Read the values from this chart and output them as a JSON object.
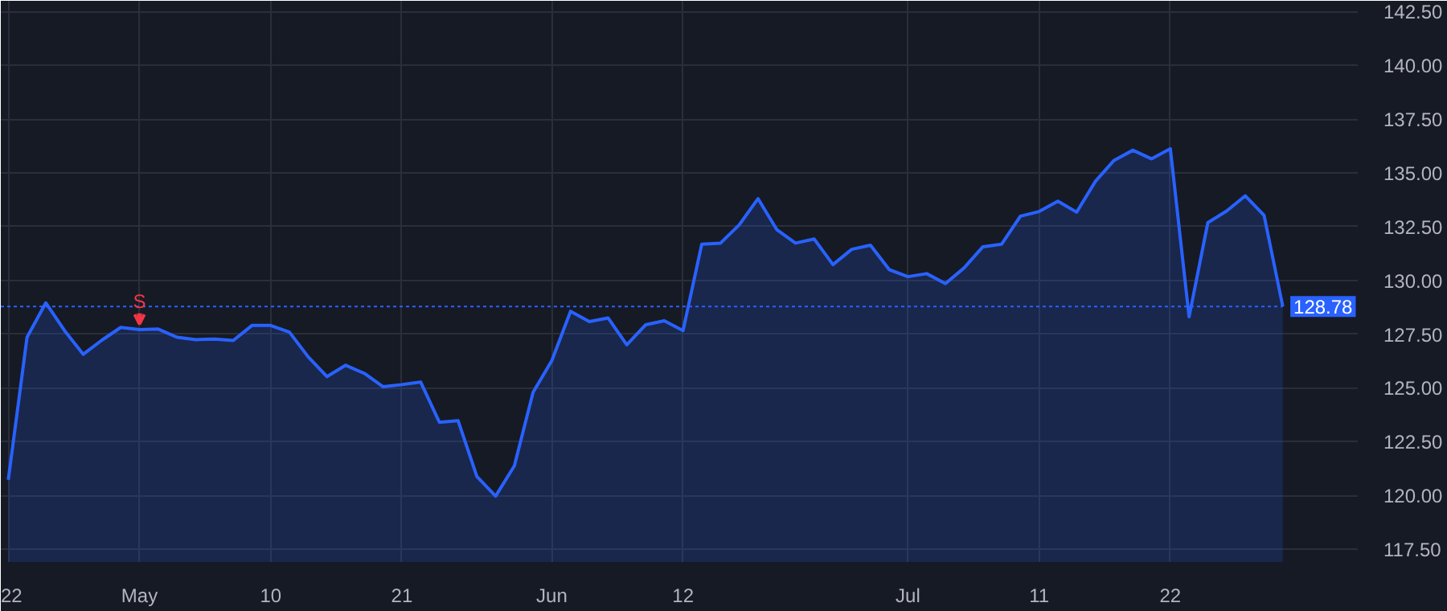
{
  "chart_data": {
    "type": "area",
    "categories": [
      "22",
      null,
      null,
      null,
      null,
      null,
      null,
      "May",
      null,
      null,
      null,
      null,
      null,
      null,
      "10",
      null,
      null,
      null,
      null,
      null,
      null,
      "21",
      null,
      null,
      null,
      null,
      null,
      null,
      null,
      "Jun",
      null,
      null,
      null,
      null,
      null,
      null,
      "12",
      null,
      null,
      null,
      null,
      null,
      null,
      null,
      null,
      null,
      null,
      null,
      "Jul",
      null,
      null,
      null,
      null,
      null,
      null,
      "11",
      null,
      null,
      null,
      null,
      null,
      null,
      "22",
      null,
      null,
      null,
      null,
      null,
      null
    ],
    "values": [
      120.72,
      127.35,
      128.95,
      127.66,
      126.56,
      127.22,
      127.81,
      127.71,
      127.73,
      127.35,
      127.24,
      127.27,
      127.2,
      127.9,
      127.9,
      127.59,
      126.44,
      125.52,
      126.05,
      125.67,
      125.05,
      125.15,
      125.27,
      123.4,
      123.47,
      120.88,
      119.96,
      121.37,
      124.79,
      126.27,
      128.56,
      128.08,
      128.25,
      127.0,
      127.93,
      128.12,
      127.66,
      131.68,
      131.73,
      132.58,
      133.8,
      132.36,
      131.73,
      131.92,
      130.73,
      131.44,
      131.63,
      130.5,
      130.17,
      130.31,
      129.85,
      130.58,
      131.56,
      131.68,
      132.98,
      133.2,
      133.68,
      133.17,
      134.6,
      135.58,
      136.05,
      135.65,
      136.12,
      128.3,
      132.68,
      133.22,
      133.93,
      133.02,
      128.78
    ],
    "color": "#2962ff",
    "ylim": [
      116.9,
      143.0
    ],
    "yticks": [
      {
        "value": 117.5,
        "label": "117.50"
      },
      {
        "value": 120,
        "label": "120.00"
      },
      {
        "value": 122.5,
        "label": "122.50"
      },
      {
        "value": 125,
        "label": "125.00"
      },
      {
        "value": 127.5,
        "label": "127.50"
      },
      {
        "value": 130,
        "label": "130.00"
      },
      {
        "value": 132.5,
        "label": "132.50"
      },
      {
        "value": 135,
        "label": "135.00"
      },
      {
        "value": 137.5,
        "label": "137.50"
      },
      {
        "value": 140,
        "label": "140.00"
      },
      {
        "value": 142.5,
        "label": "142.50"
      }
    ],
    "grid": true,
    "ref_lines": [
      {
        "axis": "y",
        "value": 128.78,
        "label": "128.78",
        "color": "#2962ff",
        "line_style": "dotted"
      }
    ],
    "annotations": [
      {
        "text": "S",
        "x": "May",
        "y": 127.71
      }
    ]
  }
}
